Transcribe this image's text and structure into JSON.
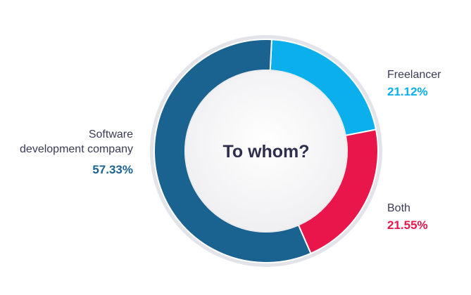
{
  "chart_data": {
    "type": "pie",
    "variant": "donut",
    "center_title": "To whom?",
    "slices": [
      {
        "label": "Freelancer",
        "value": 21.12,
        "value_text": "21.12%",
        "color": "#0aafeb"
      },
      {
        "label": "Both",
        "value": 21.55,
        "value_text": "21.55%",
        "color": "#e8164a"
      },
      {
        "label": "Software\ndevelopment company",
        "value": 57.33,
        "value_text": "57.33%",
        "color": "#1a6390"
      }
    ],
    "colors": {
      "ring_border": "#e3e4ea",
      "center_fill": "#f4f4f6",
      "text": "#3a3b55",
      "title": "#2e2f4d",
      "software_pct": "#1a6390",
      "freelancer_pct": "#0aafeb",
      "both_pct": "#e8164a"
    }
  }
}
